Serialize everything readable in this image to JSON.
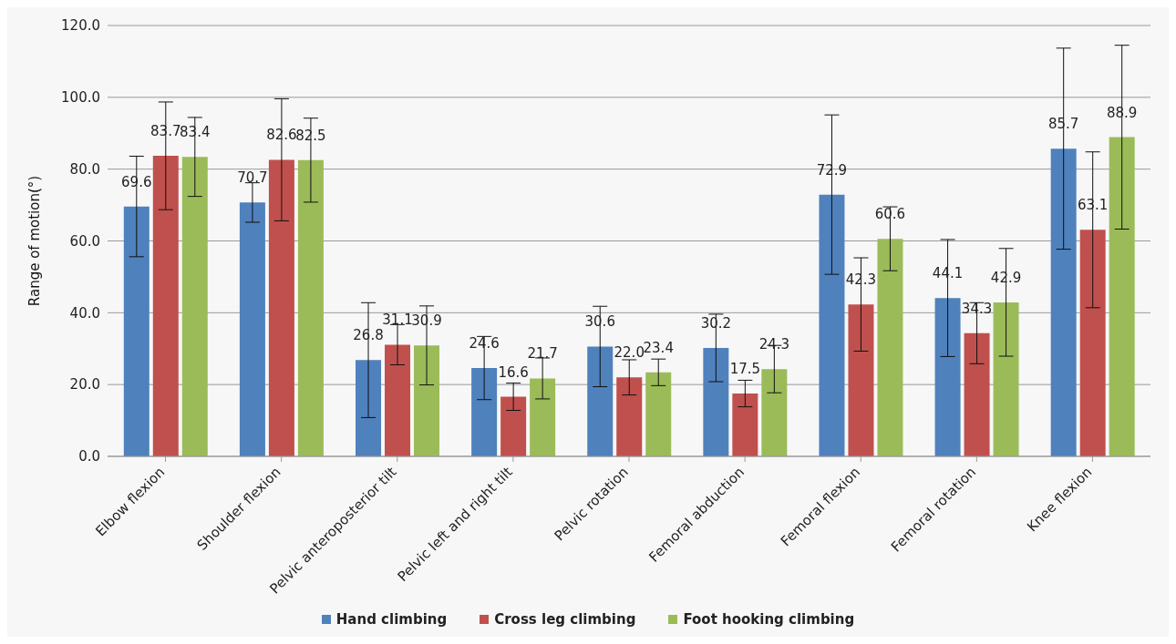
{
  "chart_data": {
    "type": "bar",
    "ylabel": "Range of motion(°)",
    "categories": [
      "Elbow flexion",
      "Shoulder flexion",
      "Pelvic anteroposterior tilt",
      "Pelvic left and right tilt",
      "Pelvic rotation",
      "Femoral abduction",
      "Femoral flexion",
      "Femoral rotation",
      "Knee flexion"
    ],
    "series": [
      {
        "name": "Hand climbing",
        "color": "#4f81bd",
        "values": [
          69.6,
          70.7,
          26.8,
          24.6,
          30.6,
          30.2,
          72.9,
          44.1,
          85.7
        ],
        "value_labels": [
          "69.6",
          "70.7",
          "26.8",
          "24.6",
          "30.6",
          "30.2",
          "72.9",
          "44.1",
          "85.7"
        ],
        "errors": [
          14,
          5.5,
          16,
          8.8,
          11.2,
          9.4,
          22.2,
          16.3,
          28
        ]
      },
      {
        "name": "Cross leg climbing",
        "color": "#c0504d",
        "values": [
          83.7,
          82.6,
          31.1,
          16.6,
          22.0,
          17.5,
          42.3,
          34.3,
          63.1
        ],
        "value_labels": [
          "83.7",
          "82.6",
          "31.1",
          "16.6",
          "22.0",
          "17.5",
          "42.3",
          "34.3",
          "63.1"
        ],
        "errors": [
          15,
          17,
          5.6,
          3.8,
          4.9,
          3.7,
          13,
          8.5,
          21.7
        ]
      },
      {
        "name": "Foot hooking climbing",
        "color": "#9bbb59",
        "values": [
          83.4,
          82.5,
          30.9,
          21.7,
          23.4,
          24.3,
          60.6,
          42.9,
          88.9
        ],
        "value_labels": [
          "83.4",
          "82.5",
          "30.9",
          "21.7",
          "23.4",
          "24.3",
          "60.6",
          "42.9",
          "88.9"
        ],
        "errors": [
          11,
          11.7,
          11,
          5.7,
          3.7,
          6.6,
          8.9,
          15,
          25.6
        ]
      }
    ],
    "ylim": [
      0,
      120
    ],
    "yticks": [
      {
        "value": 0,
        "label": "0.0"
      },
      {
        "value": 20,
        "label": "20.0"
      },
      {
        "value": 40,
        "label": "40.0"
      },
      {
        "value": 60,
        "label": "60.0"
      },
      {
        "value": 80,
        "label": "80.0"
      },
      {
        "value": 100,
        "label": "100.0"
      },
      {
        "value": 120,
        "label": "120.0"
      }
    ],
    "grid": "y",
    "legend": "bottom"
  }
}
